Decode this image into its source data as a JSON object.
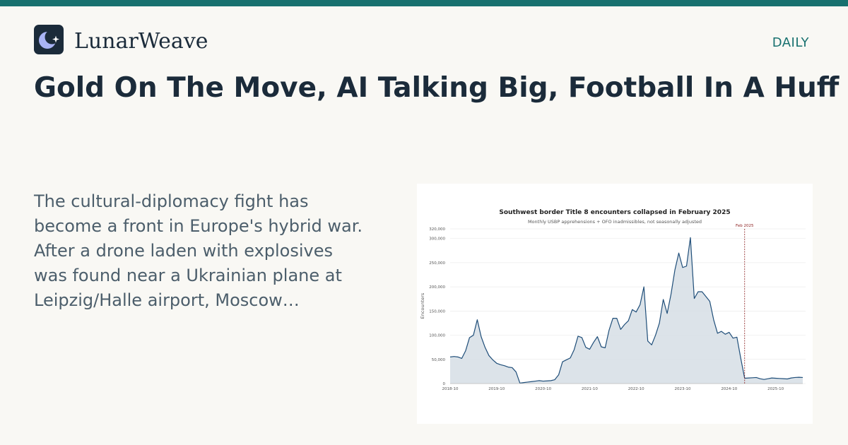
{
  "brand": {
    "name": "LunarWeave",
    "logo_icon": "crescent-moon-star-icon",
    "icon_bg": "#1b2b3a",
    "icon_fg": "#a9b4f5"
  },
  "badge": "DAILY",
  "headline": "Gold On The Move, AI Talking Big, Football In A Huff",
  "excerpt": "The cultural-diplomacy fight has become a front in Europe's hybrid war. After a drone laden with explosives was found near a Ukrainian plane at Leipzig/Halle airport, Moscow…",
  "colors": {
    "accent": "#18716f",
    "text_dark": "#1b2b3a",
    "text_muted": "#4c5e6b",
    "background": "#f9f8f4",
    "series_line": "#1f4e79",
    "series_fill": "#d6dee5",
    "marker": "#8b1e1e"
  },
  "chart_data": {
    "type": "area",
    "title": "Southwest border Title 8 encounters collapsed in February 2025",
    "subtitle": "Monthly USBP apprehensions + OFO inadmissibles, not seasonally adjusted",
    "xlabel": "",
    "ylabel": "Encounters",
    "ylim": [
      0,
      320000
    ],
    "yticks": [
      0,
      50000,
      100000,
      150000,
      200000,
      250000,
      300000,
      320000
    ],
    "ytick_labels": [
      "0",
      "50,000",
      "100,000",
      "150,000",
      "200,000",
      "250,000",
      "300,000",
      "320,000"
    ],
    "xticks": [
      "2018-10",
      "2019-10",
      "2020-10",
      "2021-10",
      "2022-10",
      "2023-10",
      "2024-10",
      "2025-10"
    ],
    "grid": true,
    "legend": "none",
    "annotation": {
      "label": "Feb 2025",
      "x": "2025-02",
      "style": "dashed vertical line"
    },
    "series": [
      {
        "x_start": "2018-10",
        "values": [
          55000,
          56000,
          55000,
          52000,
          68000,
          95000,
          100000,
          132000,
          97000,
          75000,
          58000,
          49000,
          42000,
          39000,
          37000,
          34000,
          33000,
          24000,
          1000,
          2000,
          3000,
          4000,
          5000,
          6000,
          5000,
          5500,
          6000,
          8000,
          18000,
          45000,
          49000,
          53000,
          70000,
          98000,
          95000,
          75000,
          71000,
          85000,
          97000,
          76000,
          74000,
          110000,
          135000,
          135000,
          112000,
          122000,
          130000,
          153000,
          148000,
          163000,
          200000,
          88000,
          80000,
          100000,
          125000,
          174000,
          145000,
          185000,
          235000,
          270000,
          240000,
          243000,
          302000,
          176000,
          190000,
          190000,
          180000,
          170000,
          132000,
          104000,
          108000,
          102000,
          106000,
          94000,
          96000,
          52000,
          11000,
          11500,
          12000,
          12500,
          10000,
          8500,
          10000,
          11500,
          11000,
          10500,
          10000,
          9500,
          11500,
          12500,
          13000,
          12500
        ]
      }
    ]
  }
}
